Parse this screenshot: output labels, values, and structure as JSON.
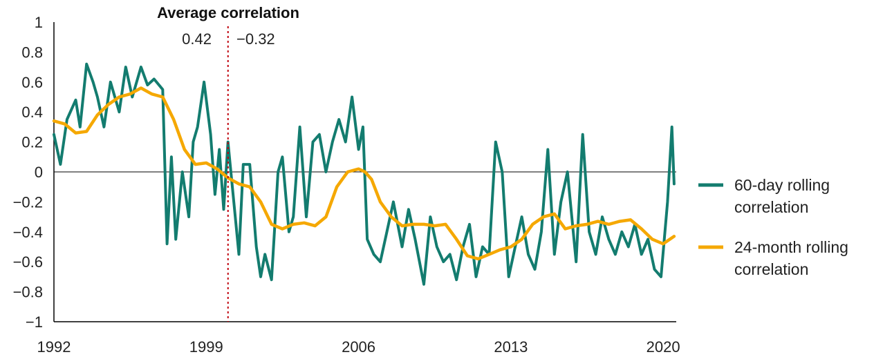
{
  "chart_data": {
    "type": "line",
    "title": "",
    "xlabel": "",
    "ylabel": "",
    "xlim": [
      1992,
      2020.6
    ],
    "ylim": [
      -1,
      1
    ],
    "x_ticks": [
      1992,
      1999,
      2006,
      2013,
      2020
    ],
    "x_tick_labels": [
      "1992",
      "1999",
      "2006",
      "2013",
      "2020"
    ],
    "y_ticks": [
      1,
      0.8,
      0.6,
      0.4,
      0.2,
      0,
      -0.2,
      -0.4,
      -0.6,
      -0.8,
      -1
    ],
    "y_tick_labels": [
      "1",
      "0.8",
      "0.6",
      "0.4",
      "0.2",
      "0",
      "−0.2",
      "−0.4",
      "−0.6",
      "−0.8",
      "−1"
    ],
    "grid": false,
    "zero_line": true,
    "legend_position": "right",
    "colors": {
      "series_60d": "#137c6f",
      "series_24m": "#f5a800",
      "divider": "#c0000c",
      "axis": "#000000"
    },
    "annotation": {
      "title": "Average correlation",
      "divider_x": 2000,
      "left_value": "0.42",
      "right_value": "−0.32"
    },
    "series": [
      {
        "name": "60-day rolling correlation",
        "x": [
          1992.0,
          1992.3,
          1992.6,
          1993.0,
          1993.2,
          1993.5,
          1993.8,
          1994.0,
          1994.3,
          1994.6,
          1995.0,
          1995.3,
          1995.6,
          1996.0,
          1996.3,
          1996.6,
          1997.0,
          1997.2,
          1997.4,
          1997.6,
          1997.9,
          1998.2,
          1998.4,
          1998.6,
          1998.9,
          1999.2,
          1999.4,
          1999.6,
          1999.8,
          2000.0,
          2000.3,
          2000.5,
          2000.7,
          2001.0,
          2001.3,
          2001.5,
          2001.7,
          2002.0,
          2002.3,
          2002.5,
          2002.8,
          2003.0,
          2003.3,
          2003.6,
          2003.9,
          2004.2,
          2004.5,
          2004.8,
          2005.1,
          2005.4,
          2005.7,
          2006.0,
          2006.2,
          2006.4,
          2006.7,
          2007.0,
          2007.3,
          2007.6,
          2008.0,
          2008.3,
          2008.6,
          2009.0,
          2009.3,
          2009.6,
          2009.9,
          2010.2,
          2010.5,
          2010.8,
          2011.1,
          2011.4,
          2011.7,
          2012.0,
          2012.3,
          2012.6,
          2012.9,
          2013.2,
          2013.5,
          2013.8,
          2014.1,
          2014.4,
          2014.7,
          2015.0,
          2015.3,
          2015.6,
          2016.0,
          2016.3,
          2016.6,
          2016.9,
          2017.2,
          2017.5,
          2017.8,
          2018.1,
          2018.4,
          2018.7,
          2019.0,
          2019.3,
          2019.6,
          2019.9,
          2020.2,
          2020.4,
          2020.5
        ],
        "values": [
          0.25,
          0.05,
          0.35,
          0.48,
          0.3,
          0.72,
          0.6,
          0.5,
          0.3,
          0.6,
          0.4,
          0.7,
          0.5,
          0.7,
          0.58,
          0.62,
          0.55,
          -0.48,
          0.1,
          -0.45,
          0.0,
          -0.3,
          0.2,
          0.3,
          0.6,
          0.25,
          -0.15,
          0.15,
          -0.25,
          0.2,
          -0.25,
          -0.55,
          0.05,
          0.05,
          -0.5,
          -0.7,
          -0.55,
          -0.72,
          0.0,
          0.1,
          -0.4,
          -0.3,
          0.3,
          -0.3,
          0.2,
          0.25,
          0.0,
          0.2,
          0.35,
          0.2,
          0.5,
          0.15,
          0.3,
          -0.45,
          -0.55,
          -0.6,
          -0.4,
          -0.2,
          -0.5,
          -0.25,
          -0.45,
          -0.75,
          -0.3,
          -0.5,
          -0.6,
          -0.55,
          -0.72,
          -0.5,
          -0.35,
          -0.7,
          -0.5,
          -0.55,
          0.2,
          0.0,
          -0.7,
          -0.5,
          -0.3,
          -0.55,
          -0.65,
          -0.4,
          0.15,
          -0.55,
          -0.2,
          0.0,
          -0.6,
          0.25,
          -0.4,
          -0.55,
          -0.3,
          -0.45,
          -0.55,
          -0.4,
          -0.5,
          -0.35,
          -0.55,
          -0.45,
          -0.65,
          -0.7,
          -0.2,
          0.3,
          -0.08
        ]
      },
      {
        "name": "24-month rolling correlation",
        "x": [
          1992.0,
          1992.5,
          1993.0,
          1993.5,
          1994.0,
          1994.5,
          1995.0,
          1995.5,
          1996.0,
          1996.5,
          1997.0,
          1997.5,
          1998.0,
          1998.5,
          1999.0,
          1999.5,
          2000.0,
          2000.5,
          2001.0,
          2001.5,
          2002.0,
          2002.5,
          2003.0,
          2003.5,
          2004.0,
          2004.5,
          2005.0,
          2005.5,
          2006.0,
          2006.3,
          2006.6,
          2007.0,
          2007.5,
          2008.0,
          2008.5,
          2009.0,
          2009.5,
          2010.0,
          2010.5,
          2011.0,
          2011.5,
          2012.0,
          2012.5,
          2013.0,
          2013.5,
          2014.0,
          2014.5,
          2015.0,
          2015.5,
          2016.0,
          2016.5,
          2017.0,
          2017.5,
          2018.0,
          2018.5,
          2019.0,
          2019.5,
          2020.0,
          2020.4,
          2020.5
        ],
        "values": [
          0.34,
          0.32,
          0.26,
          0.27,
          0.38,
          0.45,
          0.5,
          0.52,
          0.56,
          0.52,
          0.5,
          0.35,
          0.15,
          0.05,
          0.06,
          0.02,
          -0.04,
          -0.08,
          -0.1,
          -0.2,
          -0.35,
          -0.38,
          -0.35,
          -0.34,
          -0.36,
          -0.3,
          -0.1,
          0.0,
          0.02,
          0.0,
          -0.05,
          -0.2,
          -0.3,
          -0.36,
          -0.35,
          -0.35,
          -0.36,
          -0.35,
          -0.45,
          -0.56,
          -0.58,
          -0.55,
          -0.52,
          -0.5,
          -0.45,
          -0.35,
          -0.3,
          -0.28,
          -0.38,
          -0.36,
          -0.35,
          -0.33,
          -0.35,
          -0.33,
          -0.32,
          -0.38,
          -0.45,
          -0.48,
          -0.44,
          -0.43
        ]
      }
    ]
  }
}
